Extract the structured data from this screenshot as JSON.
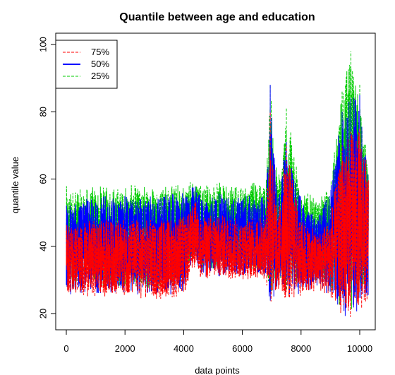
{
  "chart_data": {
    "type": "line",
    "title": "Quantile between age and education",
    "xlabel": "data points",
    "ylabel": "quantile value",
    "xlim": [
      0,
      10300
    ],
    "ylim": [
      20,
      100
    ],
    "x_ticks": [
      "0",
      "2000",
      "4000",
      "6000",
      "8000",
      "10000"
    ],
    "y_ticks": [
      "20",
      "40",
      "60",
      "80",
      "100"
    ],
    "legend_position": "top-left",
    "grid": false,
    "n_points": 10300,
    "series": [
      {
        "name": "75%",
        "color": "#ff0000",
        "style": "dashed",
        "profile_x": [
          0,
          500,
          1000,
          2000,
          3000,
          4000,
          4200,
          4400,
          4600,
          5000,
          6000,
          6800,
          6950,
          7200,
          7500,
          8000,
          8600,
          9000,
          9400,
          9700,
          10000,
          10300
        ],
        "profile_lo": [
          26,
          25,
          25,
          25,
          24,
          25,
          30,
          34,
          30,
          30,
          30,
          30,
          21,
          27,
          23,
          25,
          27,
          24,
          18,
          18,
          20,
          22
        ],
        "profile_hi": [
          47,
          47,
          48,
          48,
          48,
          49,
          50,
          54,
          48,
          50,
          48,
          49,
          80,
          48,
          70,
          48,
          44,
          50,
          70,
          74,
          75,
          62
        ]
      },
      {
        "name": "50%",
        "color": "#0000ff",
        "style": "solid",
        "profile_x": [
          0,
          500,
          1000,
          2000,
          3000,
          4000,
          4200,
          4400,
          4600,
          5000,
          6000,
          6800,
          6950,
          7200,
          7500,
          8000,
          8600,
          9000,
          9400,
          9700,
          10000,
          10300
        ],
        "profile_lo": [
          25,
          26,
          26,
          26,
          25,
          26,
          32,
          35,
          31,
          31,
          31,
          31,
          22,
          28,
          24,
          26,
          28,
          25,
          19,
          19,
          21,
          23
        ],
        "profile_hi": [
          53,
          54,
          55,
          55,
          55,
          56,
          57,
          59,
          55,
          56,
          55,
          55,
          88,
          56,
          71,
          55,
          49,
          58,
          80,
          84,
          85,
          60
        ]
      },
      {
        "name": "25%",
        "color": "#00cc00",
        "style": "dashed",
        "profile_x": [
          0,
          500,
          1000,
          2000,
          3000,
          4000,
          4200,
          4400,
          4600,
          5000,
          6000,
          6800,
          6950,
          7200,
          7500,
          8000,
          8600,
          9000,
          9400,
          9700,
          10000,
          10300
        ],
        "profile_lo": [
          27,
          28,
          28,
          28,
          27,
          28,
          34,
          37,
          33,
          33,
          33,
          33,
          24,
          30,
          26,
          28,
          30,
          27,
          21,
          21,
          23,
          25
        ],
        "profile_hi": [
          58,
          57,
          58,
          58,
          59,
          59,
          60,
          60,
          59,
          59,
          59,
          59,
          88,
          60,
          81,
          58,
          53,
          60,
          86,
          98,
          88,
          63
        ]
      }
    ]
  }
}
